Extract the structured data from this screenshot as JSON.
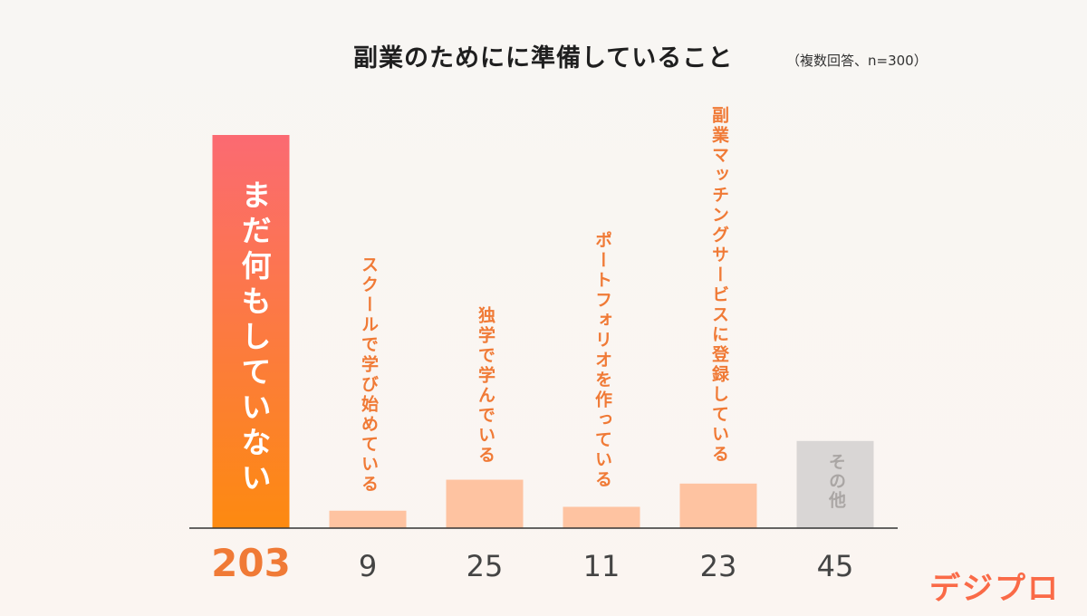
{
  "title": "副業のためにに準備していること",
  "note": "（複数回答、n=300）",
  "logo": "デジプロ",
  "colors": {
    "highlight_top": "#fb6a72",
    "highlight_bottom": "#fd8a10",
    "bar": "#fec3a1",
    "other": "#d9d6d5",
    "label_orange": "#f07a36",
    "label_gray": "#aaa6a4",
    "value_gray": "#444444",
    "value_highlight": "#f07a36"
  },
  "chart_data": {
    "type": "bar",
    "categories": [
      "まだ何もしていない",
      "スクールで学び始めている",
      "独学で学んでいる",
      "ポートフォリオを作っている",
      "副業マッチングサービスに登録している",
      "その他"
    ],
    "values": [
      203,
      9,
      25,
      11,
      23,
      45
    ],
    "ylim": [
      0,
      203
    ],
    "highlight_index": 0,
    "other_index": 5,
    "grid": false,
    "legend": "none"
  }
}
